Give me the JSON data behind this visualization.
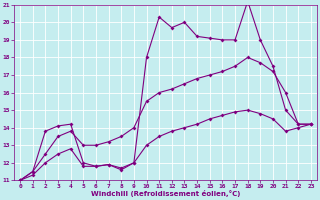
{
  "title": "",
  "xlabel": "Windchill (Refroidissement éolien,°C)",
  "ylabel": "",
  "xlim": [
    -0.5,
    23.5
  ],
  "ylim": [
    11,
    21
  ],
  "xticks": [
    0,
    1,
    2,
    3,
    4,
    5,
    6,
    7,
    8,
    9,
    10,
    11,
    12,
    13,
    14,
    15,
    16,
    17,
    18,
    19,
    20,
    21,
    22,
    23
  ],
  "yticks": [
    11,
    12,
    13,
    14,
    15,
    16,
    17,
    18,
    19,
    20,
    21
  ],
  "bg_color": "#c5edef",
  "line_color": "#800080",
  "grid_color": "#ffffff",
  "line1_y": [
    11.0,
    11.5,
    13.8,
    14.1,
    14.2,
    12.0,
    11.8,
    11.9,
    11.6,
    12.0,
    18.0,
    20.3,
    19.7,
    20.0,
    19.2,
    19.1,
    19.0,
    19.0,
    21.2,
    19.0,
    17.5,
    15.0,
    14.2,
    14.2
  ],
  "line2_y": [
    11.0,
    11.5,
    12.5,
    13.5,
    13.8,
    13.0,
    13.0,
    13.2,
    13.5,
    14.0,
    15.5,
    16.0,
    16.2,
    16.5,
    16.8,
    17.0,
    17.2,
    17.5,
    18.0,
    17.7,
    17.2,
    16.0,
    14.2,
    14.2
  ],
  "line3_y": [
    11.0,
    11.3,
    12.0,
    12.5,
    12.8,
    11.8,
    11.8,
    11.9,
    11.7,
    12.0,
    13.0,
    13.5,
    13.8,
    14.0,
    14.2,
    14.5,
    14.7,
    14.9,
    15.0,
    14.8,
    14.5,
    13.8,
    14.0,
    14.2
  ],
  "markersize": 2.0,
  "linewidth": 0.8,
  "tick_fontsize": 4.5,
  "xlabel_fontsize": 5.0
}
